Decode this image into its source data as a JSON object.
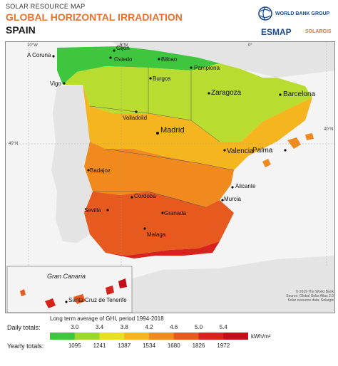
{
  "header": {
    "supertitle": "SOLAR RESOURCE MAP",
    "title": "GLOBAL HORIZONTAL IRRADIATION",
    "country": "SPAIN"
  },
  "logos": {
    "world_bank": "WORLD BANK GROUP",
    "esmap": "ESMAP",
    "solargis": "SOLARGIS"
  },
  "map": {
    "coords": {
      "lon_10w": "10°W",
      "lon_5w": "5°W",
      "lat_40n_left": "40°N",
      "lat_40n_right": "40°N",
      "lon_0": "0°"
    },
    "cities": {
      "a_coruna": "A Coruna",
      "gijon": "Gijon",
      "oviedo": "Oviedo",
      "bilbao": "Bilbao",
      "pamplona": "Pamplona",
      "vigo": "Vigo",
      "burgos": "Burgos",
      "valladolid": "Valladolid",
      "zaragoza": "Zaragoza",
      "barcelona": "Barcelona",
      "madrid": "Madrid",
      "palma": "Palma",
      "valencia": "Valencia",
      "badajoz": "Badajoz",
      "alicante": "Alicante",
      "cordoba": "Cordoba",
      "murcia": "Murcia",
      "sevilla": "Sevilla",
      "granada": "Granada",
      "malaga": "Malaga",
      "santa_cruz": "Santa Cruz de Tenerife"
    },
    "inset_label": "Gran Canaria",
    "credit_line1": "© 2019 The World Bank",
    "credit_line2": "Source: Global Solar Atlas 2.0",
    "credit_line3": "Solar resource data: Solargis"
  },
  "legend": {
    "caption": "Long term average of GHI, period 1994-2018",
    "daily_label": "Daily totals:",
    "yearly_label": "Yearly totals:",
    "daily_values": [
      "3.0",
      "3.4",
      "3.8",
      "4.2",
      "4.6",
      "5.0",
      "5.4"
    ],
    "yearly_values": [
      "1095",
      "1241",
      "1387",
      "1534",
      "1680",
      "1826",
      "1972"
    ],
    "unit": "kWh/m²",
    "colors": [
      "#3ec63e",
      "#9ad82c",
      "#e6e020",
      "#f5b51e",
      "#f08a1f",
      "#e75a1f",
      "#d8221e",
      "#c40f1a"
    ]
  }
}
